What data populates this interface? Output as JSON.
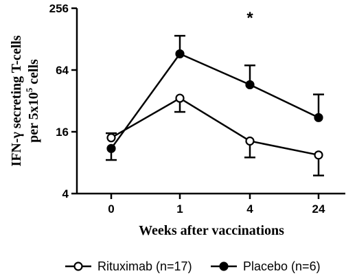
{
  "chart_data": {
    "type": "line",
    "ylabel_line1": "IFN-γ secreting T-cells",
    "ylabel_line2_prefix": "per 5x10",
    "ylabel_line2_sup": "5",
    "ylabel_line2_suffix": " cells",
    "xlabel": "Weeks after vaccinations",
    "categories": [
      "0",
      "1",
      "4",
      "24"
    ],
    "y_scale": "log2",
    "ylim": [
      4,
      256
    ],
    "yticks": [
      4,
      16,
      64,
      256
    ],
    "ytick_labels": [
      "4",
      "16",
      "64",
      "256"
    ],
    "annotations": [
      {
        "text": "*",
        "category_index": 2
      }
    ],
    "series": [
      {
        "name": "Rituximab (n=17)",
        "marker": "open-circle",
        "values": [
          14,
          34,
          13,
          9.5
        ],
        "err_upper": [
          15.5,
          34,
          13,
          9.5
        ],
        "err_lower": [
          14,
          25,
          9,
          6
        ],
        "err_direction": [
          "up",
          "down",
          "down",
          "down"
        ]
      },
      {
        "name": "Placebo (n=6)",
        "marker": "filled-circle",
        "values": [
          11,
          92,
          46,
          22
        ],
        "err_upper": [
          15.5,
          138,
          71,
          37
        ],
        "err_lower": [
          8.5,
          92,
          46,
          22
        ],
        "err_direction": [
          "down",
          "up",
          "up",
          "up"
        ]
      }
    ],
    "legend_position": "bottom"
  }
}
